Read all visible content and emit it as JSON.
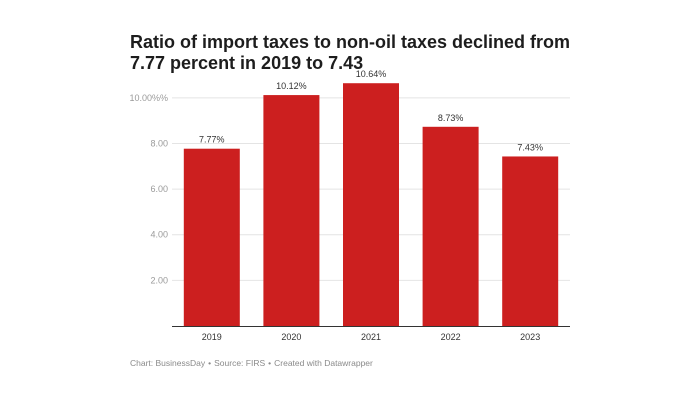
{
  "chart_data": {
    "type": "bar",
    "title": "Ratio of import taxes to non-oil taxes declined from 7.77 percent in 2019 to 7.43",
    "categories": [
      "2019",
      "2020",
      "2021",
      "2022",
      "2023"
    ],
    "values": [
      7.77,
      10.12,
      10.64,
      8.73,
      7.43
    ],
    "value_labels": [
      "7.77%",
      "10.12%",
      "10.64%",
      "8.73%",
      "7.43%"
    ],
    "yticks": [
      2,
      4,
      6,
      8,
      10
    ],
    "ytick_labels": [
      "2.00",
      "4.00",
      "6.00",
      "8.00",
      "10.00%%"
    ],
    "ylim": [
      0,
      11
    ],
    "xlabel": "",
    "ylabel": "",
    "grid": true,
    "bar_color": "#cc1f1f"
  },
  "footer": {
    "credit": "Chart: BusinessDay",
    "source": "Source: FIRS",
    "tool": "Created with Datawrapper"
  }
}
